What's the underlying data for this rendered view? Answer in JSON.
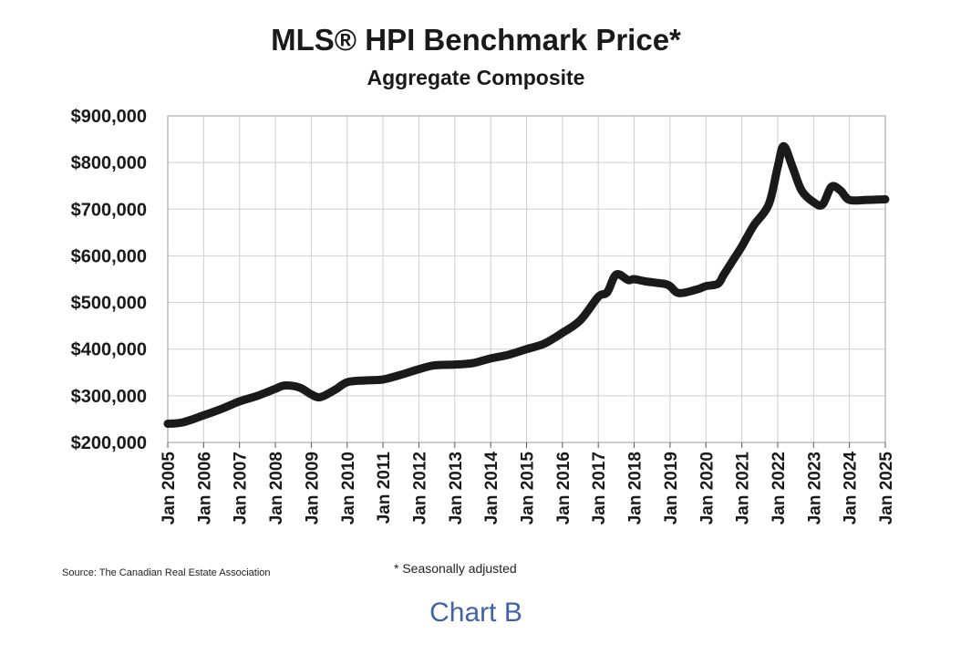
{
  "colors": {
    "line": "#1a1a1a",
    "grid": "#cfcfcf",
    "caption": "#3f62a8",
    "text": "#1a1a1a"
  },
  "source_note": "Source: The Canadian Real Estate Association",
  "footnote": "* Seasonally adjusted",
  "caption": "Chart B",
  "chart_data": {
    "type": "line",
    "title": "MLS® HPI Benchmark Price*",
    "subtitle": "Aggregate Composite",
    "xlabel": "",
    "ylabel": "",
    "ylim": [
      200000,
      900000
    ],
    "xlim": [
      "Jan 2005",
      "Jan 2025"
    ],
    "grid": true,
    "y_ticks": [
      200000,
      300000,
      400000,
      500000,
      600000,
      700000,
      800000,
      900000
    ],
    "y_tick_labels": [
      "$200,000",
      "$300,000",
      "$400,000",
      "$500,000",
      "$600,000",
      "$700,000",
      "$800,000",
      "$900,000"
    ],
    "x_tick_labels": [
      "Jan 2005",
      "Jan 2006",
      "Jan 2007",
      "Jan 2008",
      "Jan 2009",
      "Jan 2010",
      "Jan 2011",
      "Jan 2012",
      "Jan 2013",
      "Jan 2014",
      "Jan 2015",
      "Jan 2016",
      "Jan 2017",
      "Jan 2018",
      "Jan 2019",
      "Jan 2020",
      "Jan 2021",
      "Jan 2022",
      "Jan 2023",
      "Jan 2024",
      "Jan 2025"
    ],
    "series": [
      {
        "name": "",
        "x": [
          "2005-01",
          "2005-06",
          "2006-01",
          "2006-07",
          "2007-01",
          "2007-07",
          "2008-01",
          "2008-04",
          "2008-09",
          "2009-01",
          "2009-04",
          "2009-09",
          "2010-01",
          "2010-07",
          "2011-01",
          "2011-07",
          "2012-01",
          "2012-06",
          "2013-01",
          "2013-07",
          "2014-01",
          "2014-07",
          "2015-01",
          "2015-07",
          "2016-01",
          "2016-07",
          "2017-01",
          "2017-04",
          "2017-07",
          "2017-11",
          "2018-01",
          "2018-05",
          "2018-11",
          "2019-01",
          "2019-04",
          "2019-10",
          "2020-01",
          "2020-05",
          "2020-07",
          "2020-10",
          "2021-01",
          "2021-05",
          "2021-10",
          "2022-01",
          "2022-03",
          "2022-06",
          "2022-09",
          "2023-01",
          "2023-04",
          "2023-07",
          "2023-10",
          "2024-01",
          "2024-07",
          "2025-01"
        ],
        "values": [
          240000,
          243000,
          258000,
          272000,
          288000,
          300000,
          315000,
          322000,
          318000,
          303000,
          297000,
          313000,
          329000,
          333000,
          335000,
          345000,
          357000,
          365000,
          367000,
          370000,
          380000,
          388000,
          400000,
          412000,
          435000,
          462000,
          512000,
          522000,
          560000,
          548000,
          550000,
          545000,
          540000,
          535000,
          520000,
          528000,
          535000,
          540000,
          560000,
          590000,
          620000,
          665000,
          710000,
          790000,
          835000,
          790000,
          740000,
          715000,
          710000,
          748000,
          740000,
          720000,
          720000,
          721000
        ]
      }
    ]
  }
}
